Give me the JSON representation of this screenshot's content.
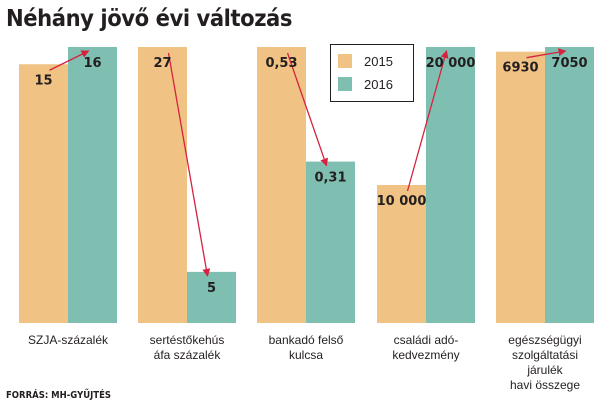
{
  "title": "Néhány jövő évi változás",
  "source": "FORRÁS: MH-GYŰJTÉS",
  "colors": {
    "y2015": "#f0c283",
    "y2016": "#7fbfb2",
    "arrow": "#d5233f"
  },
  "chart_data": {
    "type": "bar",
    "title": "Néhány jövő évi változás",
    "series": [
      {
        "name": "2015",
        "values": [
          15,
          27,
          0.53,
          10000,
          6930
        ],
        "labels": [
          "15",
          "27",
          "0,53",
          "10 000",
          "6930"
        ]
      },
      {
        "name": "2016",
        "values": [
          16,
          5,
          0.31,
          20000,
          7050
        ],
        "labels": [
          "16",
          "5",
          "0,31",
          "20 000",
          "7050"
        ]
      }
    ],
    "categories": [
      [
        "SZJA-százalék"
      ],
      [
        "sertéstőkehús",
        "áfa százalék"
      ],
      [
        "bankadó felső",
        "kulcsa"
      ],
      [
        "családi adó-",
        "kedvezmény"
      ],
      [
        "egészségügyi",
        "szolgáltatási",
        "járulék",
        "havi összege"
      ]
    ],
    "legend_position": "top-center",
    "grid": false,
    "scale": "independent per category"
  }
}
